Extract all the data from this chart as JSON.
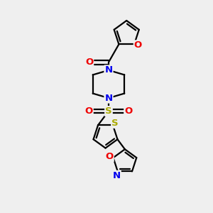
{
  "bg_color": "#efefef",
  "bond_color": "#000000",
  "bond_width": 1.6,
  "atom_colors": {
    "N": "#0000ee",
    "O": "#ee0000",
    "S_thio": "#aaaa00",
    "S_sul": "#aaaa00",
    "C": "#000000"
  },
  "font_size": 9.5,
  "figsize": [
    3.0,
    3.0
  ],
  "dpi": 100,
  "xlim": [
    0,
    10
  ],
  "ylim": [
    0,
    10
  ]
}
